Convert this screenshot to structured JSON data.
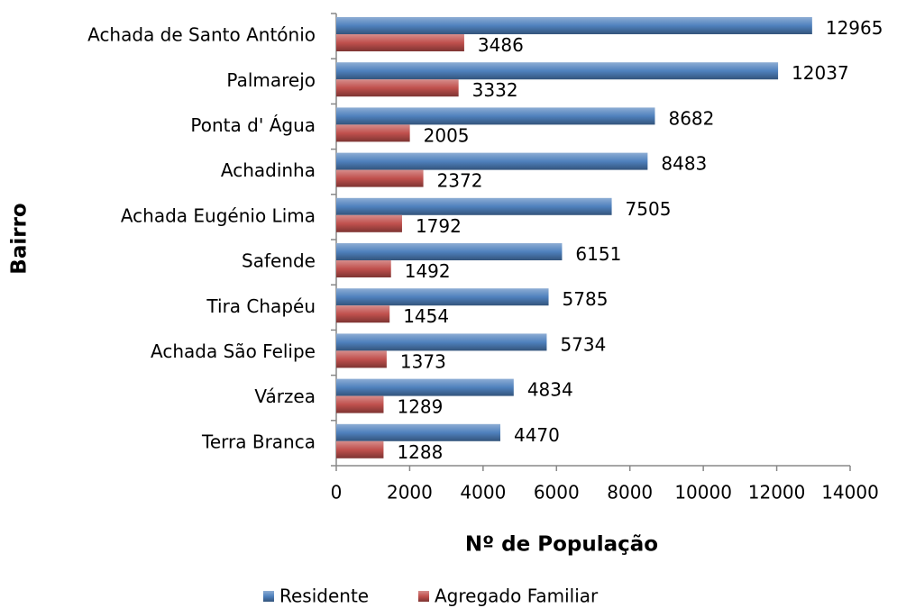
{
  "chart_data": {
    "type": "barh",
    "xlabel": "Nº de População",
    "ylabel": "Bairro",
    "categories": [
      "Achada de Santo António",
      "Palmarejo",
      "Ponta d' Água",
      "Achadinha",
      "Achada Eugénio Lima",
      "Safende",
      "Tira Chapéu",
      "Achada São Felipe",
      "Várzea",
      "Terra Branca"
    ],
    "series": [
      {
        "name": "Residente",
        "color": "#4f81bd",
        "values": [
          12965,
          12037,
          8682,
          8483,
          7505,
          6151,
          5785,
          5734,
          4834,
          4470
        ]
      },
      {
        "name": "Agregado Familiar",
        "color": "#c0504d",
        "values": [
          3486,
          3332,
          2005,
          2372,
          1792,
          1492,
          1454,
          1373,
          1289,
          1288
        ]
      }
    ],
    "xlim": [
      0,
      14000
    ],
    "xticks": [
      0,
      2000,
      4000,
      6000,
      8000,
      10000,
      12000,
      14000
    ],
    "legend": "bottom",
    "grid": false
  }
}
